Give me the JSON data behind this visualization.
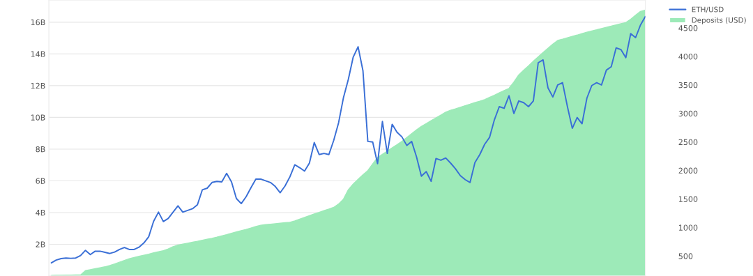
{
  "chart_data": {
    "type": "area",
    "tick_labels": "y",
    "grid": "y",
    "legend": "top right",
    "categories": [
      null,
      null,
      null,
      null,
      null,
      null,
      null,
      null,
      null,
      null,
      null,
      null,
      null,
      null,
      null,
      null,
      null,
      null,
      null,
      null,
      null,
      null,
      null,
      null,
      null,
      null,
      null,
      null,
      null,
      null,
      null,
      null,
      null,
      null,
      null,
      null,
      null,
      null,
      null,
      null,
      null,
      null,
      null,
      null,
      null,
      null,
      null,
      null,
      null,
      null,
      null,
      null,
      null,
      null,
      null,
      null,
      null,
      null,
      null,
      null,
      null,
      null,
      null,
      null,
      null,
      null,
      null,
      null,
      null,
      null,
      null,
      null,
      null,
      null,
      null,
      null,
      null,
      null,
      null,
      null,
      null,
      null,
      null,
      null,
      null,
      null,
      null,
      null,
      null,
      null,
      null,
      null,
      null,
      null,
      null,
      null,
      null,
      null,
      null,
      null,
      null,
      null,
      null,
      null,
      null,
      null,
      null,
      null,
      null,
      null,
      null,
      null,
      null,
      null,
      null,
      null,
      null,
      null,
      null,
      null,
      null,
      null,
      null
    ],
    "ylim": [
      0,
      17.4
    ],
    "yticks": [
      {
        "value": 2,
        "label": "2B"
      },
      {
        "value": 4,
        "label": "4B"
      },
      {
        "value": 6,
        "label": "6B"
      },
      {
        "value": 8,
        "label": "8B"
      },
      {
        "value": 10,
        "label": "10B"
      },
      {
        "value": 12,
        "label": "12B"
      },
      {
        "value": 14,
        "label": "14B"
      },
      {
        "value": 16,
        "label": "16B"
      }
    ],
    "y2lim": [
      150,
      4990
    ],
    "y2ticks": [
      500,
      1000,
      1500,
      2000,
      2500,
      3000,
      3500,
      4000,
      4500
    ],
    "series": [
      {
        "name": "Deposits (USD)",
        "color": "#9deab8",
        "values": [
          0.04,
          0.05,
          0.05,
          0.06,
          0.06,
          0.07,
          0.07,
          0.34,
          0.4,
          0.46,
          0.52,
          0.58,
          0.66,
          0.76,
          0.87,
          0.98,
          1.09,
          1.17,
          1.24,
          1.31,
          1.38,
          1.46,
          1.53,
          1.6,
          1.71,
          1.85,
          1.95,
          2.01,
          2.07,
          2.13,
          2.19,
          2.26,
          2.32,
          2.38,
          2.45,
          2.53,
          2.61,
          2.7,
          2.78,
          2.86,
          2.94,
          3.03,
          3.12,
          3.2,
          3.24,
          3.27,
          3.3,
          3.33,
          3.36,
          3.39,
          3.47,
          3.58,
          3.69,
          3.8,
          3.91,
          4.01,
          4.12,
          4.22,
          4.33,
          4.54,
          4.85,
          5.44,
          5.8,
          6.1,
          6.38,
          6.65,
          7.07,
          7.47,
          7.67,
          7.87,
          8.08,
          8.28,
          8.49,
          8.73,
          8.97,
          9.21,
          9.43,
          9.61,
          9.79,
          9.97,
          10.15,
          10.33,
          10.45,
          10.54,
          10.64,
          10.74,
          10.83,
          10.93,
          11.02,
          11.12,
          11.26,
          11.4,
          11.55,
          11.69,
          11.83,
          12.23,
          12.68,
          12.97,
          13.25,
          13.54,
          13.82,
          14.09,
          14.36,
          14.62,
          14.85,
          14.93,
          15.02,
          15.11,
          15.19,
          15.28,
          15.37,
          15.45,
          15.52,
          15.6,
          15.68,
          15.76,
          15.83,
          15.91,
          15.98,
          16.19,
          16.44,
          16.68,
          16.77
        ]
      },
      {
        "name": "ETH/USD",
        "type": "line",
        "axis": "y2",
        "color": "#3a6fd6",
        "values": [
          380,
          430,
          455,
          465,
          460,
          465,
          510,
          600,
          525,
          585,
          585,
          565,
          545,
          570,
          615,
          650,
          615,
          615,
          655,
          730,
          840,
          1110,
          1270,
          1105,
          1160,
          1270,
          1380,
          1270,
          1300,
          1330,
          1400,
          1660,
          1690,
          1790,
          1810,
          1800,
          1950,
          1800,
          1510,
          1420,
          1540,
          1700,
          1850,
          1850,
          1820,
          1790,
          1720,
          1610,
          1730,
          1890,
          2100,
          2050,
          1990,
          2130,
          2490,
          2280,
          2300,
          2280,
          2530,
          2840,
          3280,
          3600,
          3990,
          4170,
          3750,
          2510,
          2500,
          2120,
          2860,
          2300,
          2810,
          2670,
          2590,
          2440,
          2510,
          2240,
          1900,
          1980,
          1810,
          2210,
          2180,
          2220,
          2130,
          2030,
          1910,
          1840,
          1790,
          2140,
          2280,
          2460,
          2580,
          2890,
          3120,
          3090,
          3310,
          3000,
          3220,
          3190,
          3120,
          3220,
          3890,
          3940,
          3450,
          3290,
          3500,
          3540,
          3120,
          2740,
          2930,
          2820,
          3270,
          3490,
          3540,
          3500,
          3760,
          3820,
          4150,
          4120,
          3980,
          4400,
          4330,
          4550,
          4700
        ]
      }
    ]
  }
}
